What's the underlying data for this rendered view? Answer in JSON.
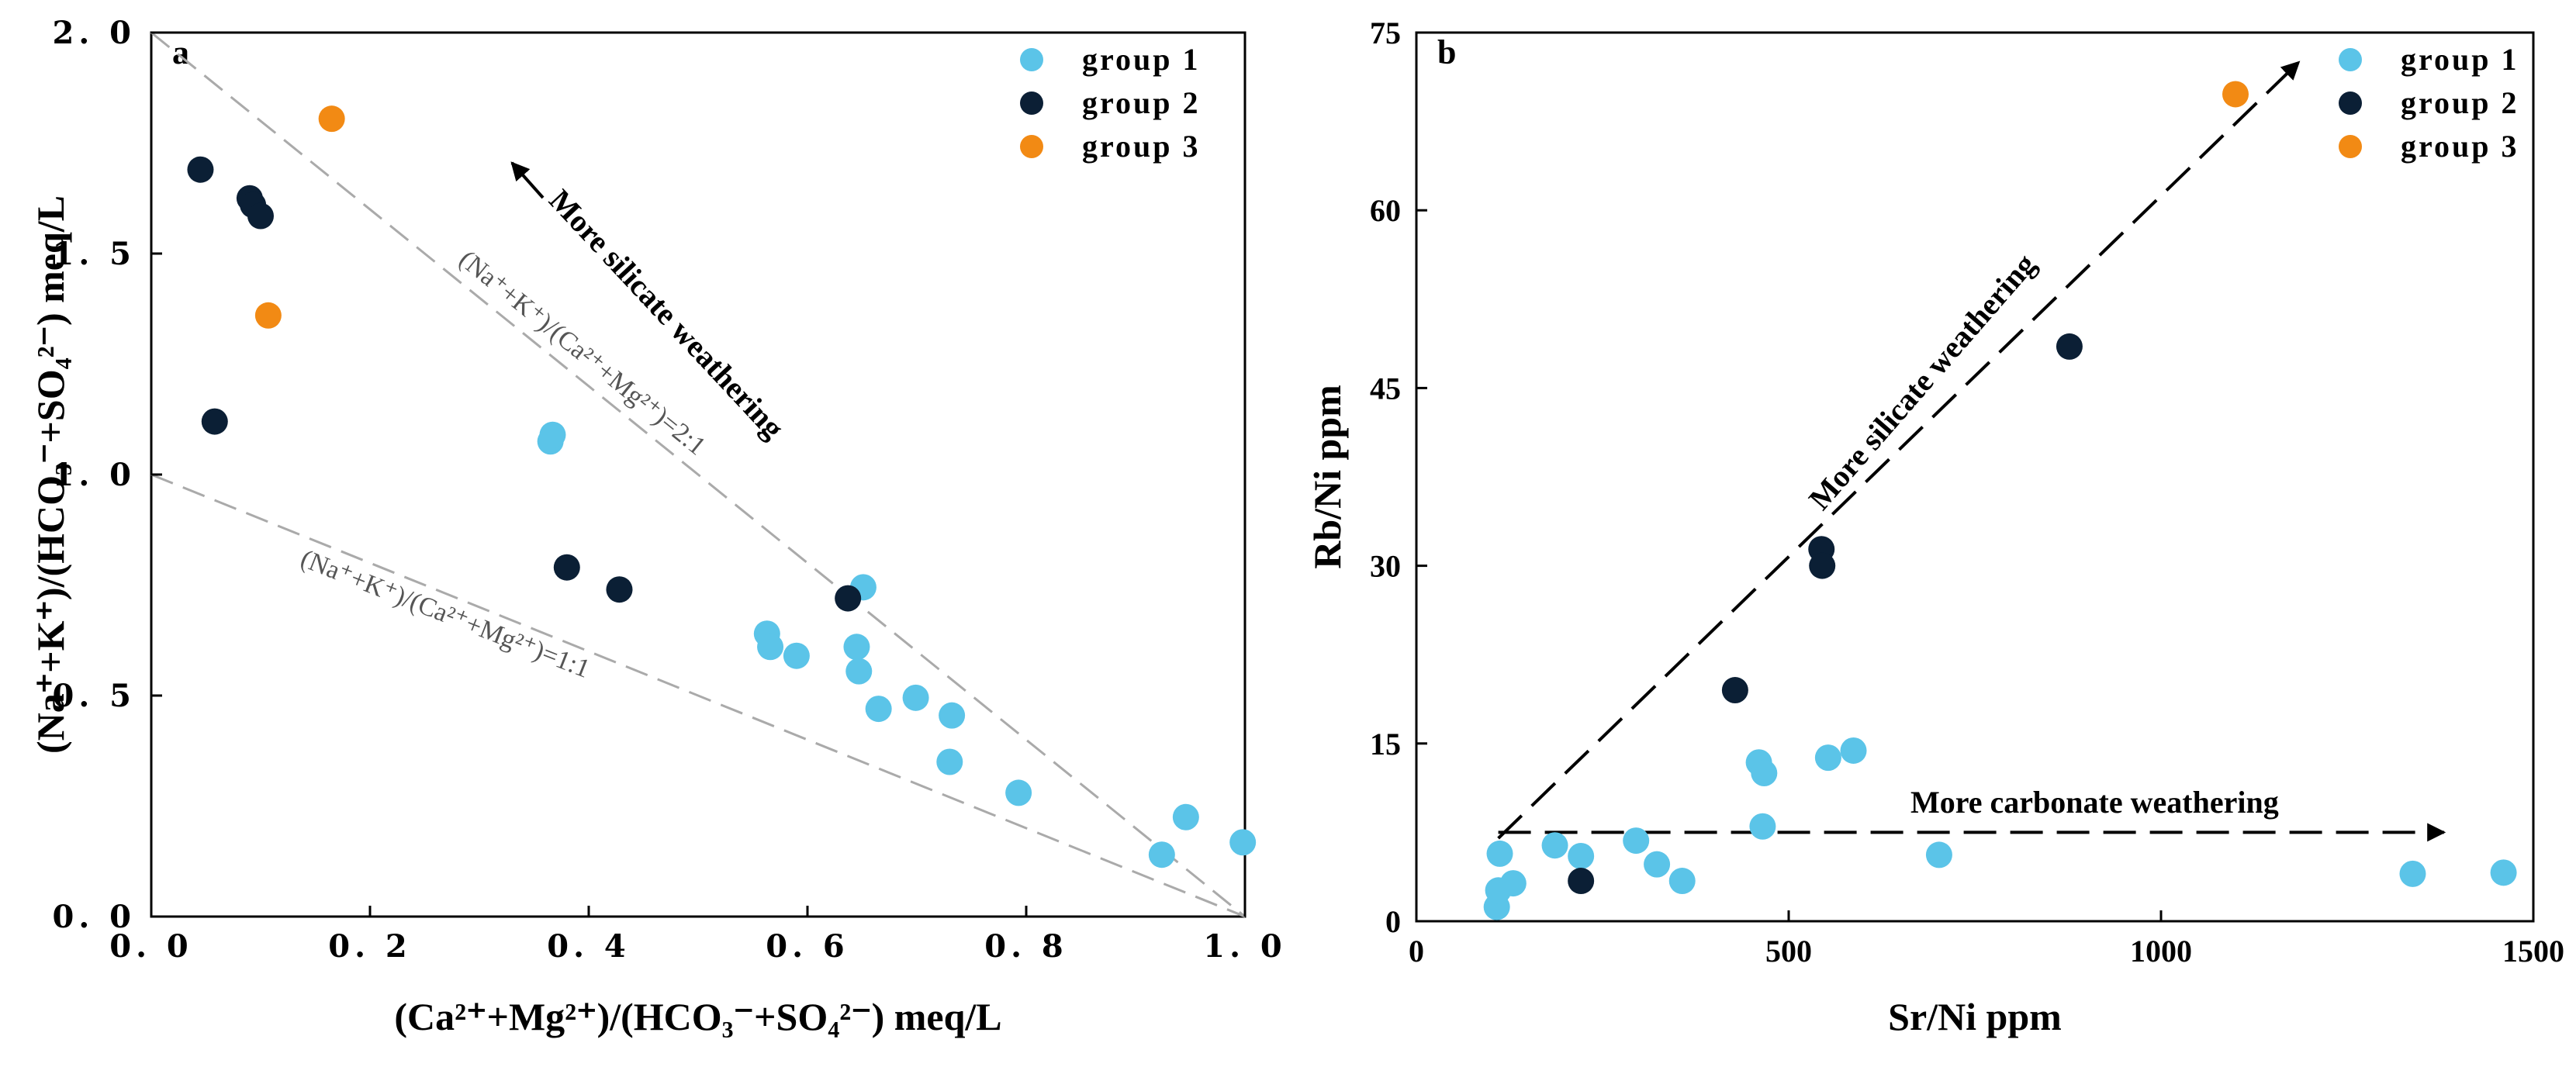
{
  "colors": {
    "group1": "#5bc4e8",
    "group2": "#0b1f35",
    "group3": "#f28a14"
  },
  "chart_data": [
    {
      "type": "scatter",
      "panel_label": "a",
      "xlabel": "(Ca²⁺+Mg²⁺)/(HCO₃⁻+SO₄²⁻)  meq/L",
      "ylabel": "(Na⁺+K⁺)/(HCO₃⁻+SO₄²⁻)  meq/L",
      "xlim": [
        0,
        1.0
      ],
      "ylim": [
        0,
        2.0
      ],
      "xticks": [
        0.0,
        0.2,
        0.4,
        0.6,
        0.8,
        1.0
      ],
      "xtick_labels": [
        "0. 0",
        "0. 2",
        "0. 4",
        "0. 6",
        "0. 8",
        "1. 0"
      ],
      "yticks": [
        0.0,
        0.5,
        1.0,
        1.5,
        2.0
      ],
      "ytick_labels": [
        "0. 0",
        "0. 5",
        "1. 0",
        "1. 5",
        "2. 0"
      ],
      "reference_lines": [
        {
          "label": "(Na⁺+K⁺)/(Ca²⁺+Mg²⁺)=2:1",
          "from": [
            0,
            2.0
          ],
          "to": [
            1.0,
            0
          ]
        },
        {
          "label": "(Na⁺+K⁺)/(Ca²⁺+Mg²⁺)=1:1",
          "from": [
            0,
            1.0
          ],
          "to": [
            1.0,
            0
          ]
        }
      ],
      "annotations": [
        {
          "text": "More silicate weathering",
          "from": [
            0.5,
            1.1
          ],
          "to": [
            0.32,
            1.72
          ]
        }
      ],
      "legend_position": "top-right",
      "series": [
        {
          "name": "group 1",
          "points": [
            [
              0.365,
              1.075
            ],
            [
              0.367,
              1.09
            ],
            [
              0.563,
              0.64
            ],
            [
              0.566,
              0.61
            ],
            [
              0.59,
              0.59
            ],
            [
              0.645,
              0.61
            ],
            [
              0.647,
              0.555
            ],
            [
              0.651,
              0.745
            ],
            [
              0.665,
              0.47
            ],
            [
              0.699,
              0.495
            ],
            [
              0.73,
              0.35
            ],
            [
              0.732,
              0.455
            ],
            [
              0.793,
              0.28
            ],
            [
              0.924,
              0.14
            ],
            [
              0.946,
              0.225
            ],
            [
              0.998,
              0.168
            ]
          ]
        },
        {
          "name": "group 2",
          "points": [
            [
              0.045,
              1.69
            ],
            [
              0.058,
              1.12
            ],
            [
              0.09,
              1.625
            ],
            [
              0.093,
              1.61
            ],
            [
              0.1,
              1.585
            ],
            [
              0.38,
              0.79
            ],
            [
              0.428,
              0.74
            ],
            [
              0.637,
              0.72
            ]
          ]
        },
        {
          "name": "group 3",
          "points": [
            [
              0.107,
              1.36
            ],
            [
              0.165,
              1.805
            ]
          ]
        }
      ]
    },
    {
      "type": "scatter",
      "panel_label": "b",
      "xlabel": "Sr/Ni  ppm",
      "ylabel": "Rb/Ni  ppm",
      "xlim": [
        0,
        1500
      ],
      "ylim": [
        0,
        75
      ],
      "xticks": [
        0,
        500,
        1000,
        1500
      ],
      "xtick_labels": [
        "0",
        "500",
        "1000",
        "1500"
      ],
      "yticks": [
        0,
        15,
        30,
        45,
        60,
        75
      ],
      "ytick_labels": [
        "0",
        "15",
        "30",
        "45",
        "60",
        "75"
      ],
      "annotations": [
        {
          "text": "More silicate weathering",
          "from": [
            110,
            7
          ],
          "to": [
            1185,
            72.5
          ]
        },
        {
          "text": "More carbonate weathering",
          "from": [
            110,
            7.5
          ],
          "to": [
            1380,
            7.5
          ]
        }
      ],
      "legend_position": "top-right",
      "series": [
        {
          "name": "group 1",
          "points": [
            [
              108,
              1.2
            ],
            [
              110,
              2.6
            ],
            [
              112,
              5.7
            ],
            [
              130,
              3.2
            ],
            [
              186,
              6.4
            ],
            [
              221,
              5.5
            ],
            [
              295,
              6.8
            ],
            [
              323,
              4.8
            ],
            [
              357,
              3.4
            ],
            [
              460,
              13.4
            ],
            [
              465,
              8.0
            ],
            [
              467,
              12.5
            ],
            [
              553,
              13.8
            ],
            [
              587,
              14.4
            ],
            [
              702,
              5.6
            ],
            [
              1338,
              4.0
            ],
            [
              1460,
              4.1
            ]
          ]
        },
        {
          "name": "group 2",
          "points": [
            [
              221,
              3.4
            ],
            [
              428,
              19.5
            ],
            [
              544,
              31.4
            ],
            [
              545,
              30.0
            ],
            [
              877,
              48.5
            ]
          ]
        },
        {
          "name": "group 3",
          "points": [
            [
              1100,
              69.8
            ]
          ]
        }
      ]
    }
  ]
}
